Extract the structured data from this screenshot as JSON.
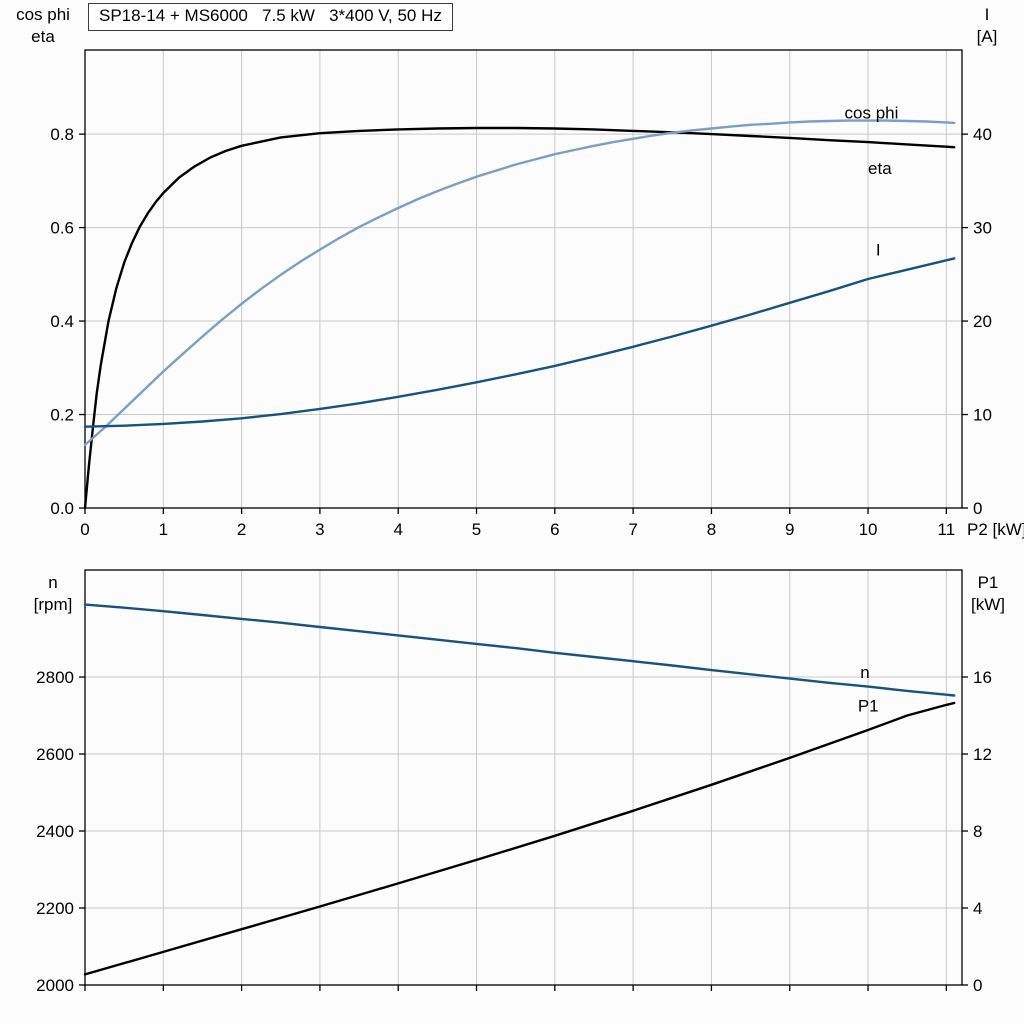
{
  "title_box": {
    "text": "SP18-14 + MS6000   7.5 kW   3*400 V, 50 Hz"
  },
  "colors": {
    "black": "#000000",
    "light_blue": "#7d9ec3",
    "dark_blue": "#185380",
    "grid": "#c9c9c9",
    "frame": "#000000",
    "background": "#fcfcfc"
  },
  "chart_data": [
    {
      "id": "motor-efficiency",
      "type": "line",
      "title": "SP18-14 + MS6000   7.5 kW   3*400 V, 50 Hz",
      "grid": true,
      "legend_position": "inline-curve-labels",
      "x_axis": {
        "title": "P2 [kW]",
        "min": 0,
        "max": 11.2,
        "ticks": [
          0,
          1,
          2,
          3,
          4,
          5,
          6,
          7,
          8,
          9,
          10,
          11
        ],
        "decimals": 0,
        "show_labels": true
      },
      "left_axis": {
        "title_lines": [
          "cos phi",
          "eta"
        ],
        "min": 0,
        "max": 0.98,
        "ticks": [
          0,
          0.2,
          0.4,
          0.6,
          0.8
        ],
        "decimals": 1
      },
      "right_axis": {
        "title_lines": [
          "I",
          "[A]"
        ],
        "min": 0,
        "max": 49,
        "ticks": [
          0,
          10,
          20,
          30,
          40
        ],
        "decimals": 0
      },
      "series": [
        {
          "id": "eta",
          "name": "eta",
          "axis": "left",
          "color": "#000000",
          "label": {
            "x": 10.0,
            "y": 0.715
          },
          "points": [
            [
              0,
              0
            ],
            [
              0.05,
              0.09
            ],
            [
              0.1,
              0.17
            ],
            [
              0.15,
              0.245
            ],
            [
              0.2,
              0.305
            ],
            [
              0.3,
              0.4
            ],
            [
              0.4,
              0.47
            ],
            [
              0.5,
              0.525
            ],
            [
              0.6,
              0.567
            ],
            [
              0.7,
              0.602
            ],
            [
              0.8,
              0.63
            ],
            [
              0.9,
              0.654
            ],
            [
              1.0,
              0.674
            ],
            [
              1.2,
              0.707
            ],
            [
              1.4,
              0.731
            ],
            [
              1.6,
              0.75
            ],
            [
              1.8,
              0.764
            ],
            [
              2.0,
              0.775
            ],
            [
              2.5,
              0.793
            ],
            [
              3.0,
              0.802
            ],
            [
              3.5,
              0.807
            ],
            [
              4.0,
              0.81
            ],
            [
              4.5,
              0.812
            ],
            [
              5.0,
              0.813
            ],
            [
              5.5,
              0.813
            ],
            [
              6.0,
              0.812
            ],
            [
              6.5,
              0.81
            ],
            [
              7.0,
              0.807
            ],
            [
              7.5,
              0.804
            ],
            [
              8.0,
              0.8
            ],
            [
              8.5,
              0.796
            ],
            [
              9.0,
              0.792
            ],
            [
              9.5,
              0.787
            ],
            [
              10.0,
              0.783
            ],
            [
              10.5,
              0.778
            ],
            [
              11.0,
              0.773
            ],
            [
              11.1,
              0.772
            ]
          ]
        },
        {
          "id": "cos-phi",
          "name": "cos phi",
          "axis": "left",
          "color": "#7d9ec3",
          "label": {
            "x": 9.7,
            "y": 0.833
          },
          "points": [
            [
              0,
              0.135
            ],
            [
              0.25,
              0.172
            ],
            [
              0.5,
              0.212
            ],
            [
              0.75,
              0.252
            ],
            [
              1.0,
              0.292
            ],
            [
              1.25,
              0.33
            ],
            [
              1.5,
              0.367
            ],
            [
              1.75,
              0.403
            ],
            [
              2.0,
              0.437
            ],
            [
              2.25,
              0.469
            ],
            [
              2.5,
              0.499
            ],
            [
              2.75,
              0.527
            ],
            [
              3.0,
              0.553
            ],
            [
              3.25,
              0.578
            ],
            [
              3.5,
              0.601
            ],
            [
              3.75,
              0.622
            ],
            [
              4.0,
              0.642
            ],
            [
              4.25,
              0.661
            ],
            [
              4.5,
              0.678
            ],
            [
              4.75,
              0.694
            ],
            [
              5.0,
              0.709
            ],
            [
              5.25,
              0.722
            ],
            [
              5.5,
              0.735
            ],
            [
              5.75,
              0.746
            ],
            [
              6.0,
              0.757
            ],
            [
              6.25,
              0.766
            ],
            [
              6.5,
              0.775
            ],
            [
              6.75,
              0.783
            ],
            [
              7.0,
              0.79
            ],
            [
              7.25,
              0.797
            ],
            [
              7.5,
              0.803
            ],
            [
              7.75,
              0.808
            ],
            [
              8.0,
              0.812
            ],
            [
              8.25,
              0.816
            ],
            [
              8.5,
              0.82
            ],
            [
              8.75,
              0.822
            ],
            [
              9.0,
              0.825
            ],
            [
              9.25,
              0.827
            ],
            [
              9.5,
              0.828
            ],
            [
              9.75,
              0.829
            ],
            [
              10.0,
              0.829
            ],
            [
              10.25,
              0.829
            ],
            [
              10.5,
              0.828
            ],
            [
              10.75,
              0.827
            ],
            [
              11.0,
              0.825
            ],
            [
              11.1,
              0.824
            ]
          ]
        },
        {
          "id": "current",
          "name": "I",
          "axis": "right",
          "color": "#185380",
          "label": {
            "x": 10.1,
            "y": 27
          },
          "points": [
            [
              0,
              8.7
            ],
            [
              0.5,
              8.8
            ],
            [
              1.0,
              9.0
            ],
            [
              1.5,
              9.25
            ],
            [
              2.0,
              9.6
            ],
            [
              2.5,
              10.05
            ],
            [
              3.0,
              10.6
            ],
            [
              3.5,
              11.2
            ],
            [
              4.0,
              11.9
            ],
            [
              4.5,
              12.65
            ],
            [
              5.0,
              13.45
            ],
            [
              5.5,
              14.3
            ],
            [
              6.0,
              15.2
            ],
            [
              6.5,
              16.2
            ],
            [
              7.0,
              17.25
            ],
            [
              7.5,
              18.35
            ],
            [
              8.0,
              19.5
            ],
            [
              8.5,
              20.7
            ],
            [
              9.0,
              21.95
            ],
            [
              9.5,
              23.2
            ],
            [
              10.0,
              24.5
            ],
            [
              10.5,
              25.5
            ],
            [
              11.0,
              26.5
            ],
            [
              11.1,
              26.7
            ]
          ]
        }
      ]
    },
    {
      "id": "speed-power",
      "type": "line",
      "title": "",
      "grid": true,
      "legend_position": "inline-curve-labels",
      "x_axis": {
        "title": "",
        "min": 0,
        "max": 11.2,
        "ticks": [
          0,
          1,
          2,
          3,
          4,
          5,
          6,
          7,
          8,
          9,
          10,
          11
        ],
        "decimals": 0,
        "show_labels": false
      },
      "left_axis": {
        "title_lines": [
          "n",
          "[rpm]"
        ],
        "min": 2000,
        "max": 3078,
        "ticks": [
          2000,
          2200,
          2400,
          2600,
          2800
        ],
        "decimals": 0
      },
      "right_axis": {
        "title_lines": [
          "P1",
          "[kW]"
        ],
        "min": 0,
        "max": 21.56,
        "ticks": [
          0,
          4,
          8,
          12,
          16
        ],
        "decimals": 0
      },
      "series": [
        {
          "id": "speed",
          "name": "n",
          "axis": "left",
          "color": "#185380",
          "label": {
            "x": 9.9,
            "y": 2798
          },
          "points": [
            [
              0,
              2988
            ],
            [
              0.5,
              2980
            ],
            [
              1,
              2971
            ],
            [
              1.5,
              2961
            ],
            [
              2,
              2951
            ],
            [
              2.5,
              2941
            ],
            [
              3,
              2930
            ],
            [
              3.5,
              2919
            ],
            [
              4,
              2908
            ],
            [
              4.5,
              2897
            ],
            [
              5,
              2886
            ],
            [
              5.5,
              2875
            ],
            [
              6,
              2863
            ],
            [
              6.5,
              2852
            ],
            [
              7,
              2841
            ],
            [
              7.5,
              2830
            ],
            [
              8,
              2818
            ],
            [
              8.5,
              2807
            ],
            [
              9,
              2796
            ],
            [
              9.5,
              2785
            ],
            [
              10,
              2775
            ],
            [
              10.5,
              2764
            ],
            [
              11,
              2754
            ],
            [
              11.1,
              2752
            ]
          ]
        },
        {
          "id": "input-power",
          "name": "P1",
          "axis": "right",
          "color": "#000000",
          "label": {
            "x": 9.87,
            "y": 14.2
          },
          "points": [
            [
              0,
              0.55
            ],
            [
              1,
              1.72
            ],
            [
              2,
              2.9
            ],
            [
              3,
              4.08
            ],
            [
              4,
              5.28
            ],
            [
              5,
              6.5
            ],
            [
              6,
              7.75
            ],
            [
              7,
              9.05
            ],
            [
              8,
              10.4
            ],
            [
              9,
              11.8
            ],
            [
              10,
              13.25
            ],
            [
              10.5,
              14.0
            ],
            [
              11,
              14.55
            ],
            [
              11.1,
              14.65
            ]
          ]
        }
      ]
    }
  ]
}
